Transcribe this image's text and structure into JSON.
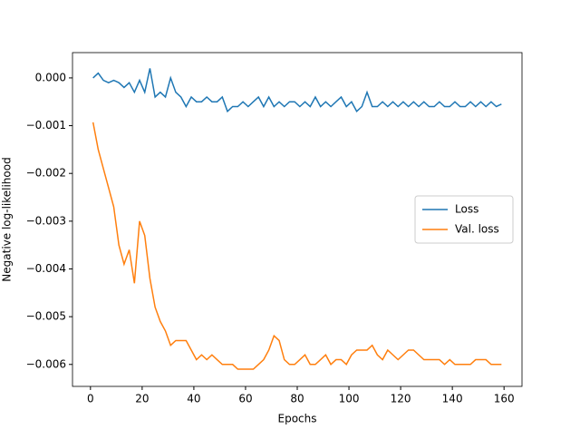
{
  "chart_data": {
    "type": "line",
    "xlabel": "Epochs",
    "ylabel": "Negative log-likelihood",
    "x": [
      1,
      3,
      5,
      7,
      9,
      11,
      13,
      15,
      17,
      19,
      21,
      23,
      25,
      27,
      29,
      31,
      33,
      35,
      37,
      39,
      41,
      43,
      45,
      47,
      49,
      51,
      53,
      55,
      57,
      59,
      61,
      63,
      65,
      67,
      69,
      71,
      73,
      75,
      77,
      79,
      81,
      83,
      85,
      87,
      89,
      91,
      93,
      95,
      97,
      99,
      101,
      103,
      105,
      107,
      109,
      111,
      113,
      115,
      117,
      119,
      121,
      123,
      125,
      127,
      129,
      131,
      133,
      135,
      137,
      139,
      141,
      143,
      145,
      147,
      149,
      151,
      153,
      155,
      157,
      159
    ],
    "series": [
      {
        "name": "Loss",
        "color": "#1f77b4",
        "values": [
          0.0,
          0.0001,
          -5e-05,
          -0.0001,
          -5e-05,
          -0.0001,
          -0.0002,
          -0.0001,
          -0.0003,
          -5e-05,
          -0.0003,
          0.0002,
          -0.0004,
          -0.0003,
          -0.0004,
          0.0,
          -0.0003,
          -0.0004,
          -0.0006,
          -0.0004,
          -0.0005,
          -0.0005,
          -0.0004,
          -0.0005,
          -0.0005,
          -0.0004,
          -0.0007,
          -0.0006,
          -0.0006,
          -0.0005,
          -0.0006,
          -0.0005,
          -0.0004,
          -0.0006,
          -0.0004,
          -0.0006,
          -0.0005,
          -0.0006,
          -0.0005,
          -0.0005,
          -0.0006,
          -0.0005,
          -0.0006,
          -0.0004,
          -0.0006,
          -0.0005,
          -0.0006,
          -0.0005,
          -0.0004,
          -0.0006,
          -0.0005,
          -0.0007,
          -0.0006,
          -0.0003,
          -0.0006,
          -0.0006,
          -0.0005,
          -0.0006,
          -0.0005,
          -0.0006,
          -0.0005,
          -0.0006,
          -0.0005,
          -0.0006,
          -0.0005,
          -0.0006,
          -0.0006,
          -0.0005,
          -0.0006,
          -0.0006,
          -0.0005,
          -0.0006,
          -0.0006,
          -0.0005,
          -0.0006,
          -0.0005,
          -0.0006,
          -0.0005,
          -0.0006,
          -0.00055
        ]
      },
      {
        "name": "Val. loss",
        "color": "#ff7f0e",
        "values": [
          -0.00093,
          -0.0015,
          -0.0019,
          -0.0023,
          -0.0027,
          -0.0035,
          -0.0039,
          -0.0036,
          -0.0043,
          -0.003,
          -0.0033,
          -0.0042,
          -0.0048,
          -0.0051,
          -0.0053,
          -0.0056,
          -0.0055,
          -0.0055,
          -0.0055,
          -0.0057,
          -0.0059,
          -0.0058,
          -0.0059,
          -0.0058,
          -0.0059,
          -0.006,
          -0.006,
          -0.006,
          -0.0061,
          -0.0061,
          -0.0061,
          -0.0061,
          -0.006,
          -0.0059,
          -0.0057,
          -0.0054,
          -0.0055,
          -0.0059,
          -0.006,
          -0.006,
          -0.0059,
          -0.0058,
          -0.006,
          -0.006,
          -0.0059,
          -0.0058,
          -0.006,
          -0.0059,
          -0.0059,
          -0.006,
          -0.0058,
          -0.0057,
          -0.0057,
          -0.0057,
          -0.0056,
          -0.0058,
          -0.0059,
          -0.0057,
          -0.0058,
          -0.0059,
          -0.0058,
          -0.0057,
          -0.0057,
          -0.0058,
          -0.0059,
          -0.0059,
          -0.0059,
          -0.0059,
          -0.006,
          -0.0059,
          -0.006,
          -0.006,
          -0.006,
          -0.006,
          -0.0059,
          -0.0059,
          -0.0059,
          -0.006,
          -0.006,
          -0.006
        ]
      }
    ],
    "xlim": [
      -6.95,
      166.95
    ],
    "xticks": [
      0,
      20,
      40,
      60,
      80,
      100,
      120,
      140,
      160
    ],
    "ylim": [
      -0.00646,
      0.00053
    ],
    "yticks": [
      {
        "value": 0,
        "label": "0.000"
      },
      {
        "value": -0.001,
        "label": "−0.001"
      },
      {
        "value": -0.002,
        "label": "−0.002"
      },
      {
        "value": -0.003,
        "label": "−0.003"
      },
      {
        "value": -0.004,
        "label": "−0.004"
      },
      {
        "value": -0.005,
        "label": "−0.005"
      },
      {
        "value": -0.006,
        "label": "−0.006"
      }
    ],
    "legend": "center right"
  }
}
